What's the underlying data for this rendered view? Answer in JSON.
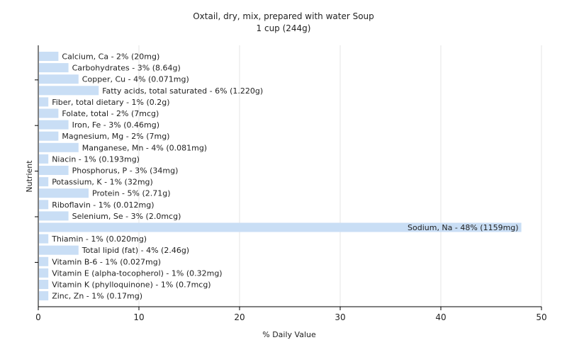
{
  "chart_data": {
    "type": "bar",
    "orientation": "horizontal",
    "title": "Oxtail, dry, mix, prepared with water Soup",
    "subtitle": "1 cup (244g)",
    "xlabel": "% Daily Value",
    "ylabel": "Nutrient",
    "xlim": [
      0,
      50
    ],
    "xticks": [
      0,
      10,
      20,
      30,
      40,
      50
    ],
    "grid": true,
    "legend": "none",
    "bar_color": "#c9def5",
    "categories": [
      "Calcium, Ca",
      "Carbohydrates",
      "Copper, Cu",
      "Fatty acids, total saturated",
      "Fiber, total dietary",
      "Folate, total",
      "Iron, Fe",
      "Magnesium, Mg",
      "Manganese, Mn",
      "Niacin",
      "Phosphorus, P",
      "Potassium, K",
      "Protein",
      "Riboflavin",
      "Selenium, Se",
      "Sodium, Na",
      "Thiamin",
      "Total lipid (fat)",
      "Vitamin B-6",
      "Vitamin E (alpha-tocopherol)",
      "Vitamin K (phylloquinone)",
      "Zinc, Zn"
    ],
    "values": [
      2,
      3,
      4,
      6,
      1,
      2,
      3,
      2,
      4,
      1,
      3,
      1,
      5,
      1,
      3,
      48,
      1,
      4,
      1,
      1,
      1,
      1
    ],
    "labels": [
      "Calcium, Ca - 2% (20mg)",
      "Carbohydrates - 3% (8.64g)",
      "Copper, Cu - 4% (0.071mg)",
      "Fatty acids, total saturated - 6% (1.220g)",
      "Fiber, total dietary - 1% (0.2g)",
      "Folate, total - 2% (7mcg)",
      "Iron, Fe - 3% (0.46mg)",
      "Magnesium, Mg - 2% (7mg)",
      "Manganese, Mn - 4% (0.081mg)",
      "Niacin - 1% (0.193mg)",
      "Phosphorus, P - 3% (34mg)",
      "Potassium, K - 1% (32mg)",
      "Protein - 5% (2.71g)",
      "Riboflavin - 1% (0.012mg)",
      "Selenium, Se - 3% (2.0mcg)",
      "Sodium, Na - 48% (1159mg)",
      "Thiamin - 1% (0.020mg)",
      "Total lipid (fat) - 4% (2.46g)",
      "Vitamin B-6 - 1% (0.027mg)",
      "Vitamin E (alpha-tocopherol) - 1% (0.32mg)",
      "Vitamin K (phylloquinone) - 1% (0.7mcg)",
      "Zinc, Zn - 1% (0.17mg)"
    ]
  }
}
